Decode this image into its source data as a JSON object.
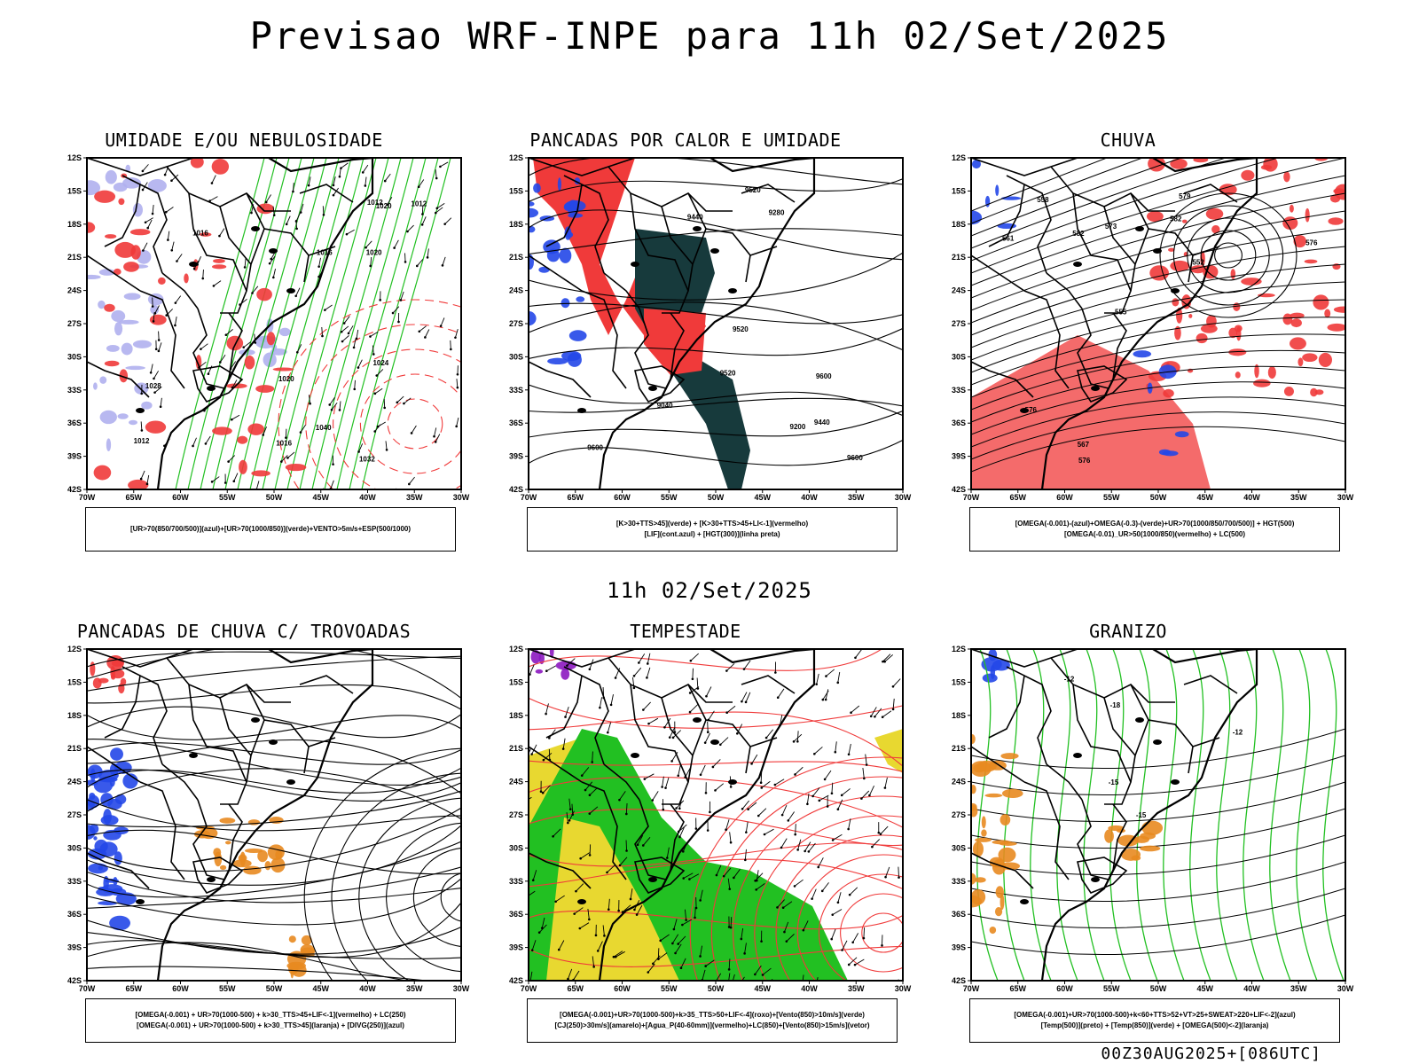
{
  "header": {
    "title": "Previsao WRF-INPE  para 11h 02/Set/2025"
  },
  "mid": {
    "date": "11h 02/Set/2025"
  },
  "footer": {
    "run_id": "00Z30AUG2025+[086UTC]"
  },
  "axes": {
    "lat": [
      "12S",
      "15S",
      "18S",
      "21S",
      "24S",
      "27S",
      "30S",
      "33S",
      "36S",
      "39S",
      "42S"
    ],
    "lon": [
      "70W",
      "65W",
      "60W",
      "55W",
      "50W",
      "45W",
      "40W",
      "35W",
      "30W"
    ]
  },
  "colors": {
    "green": "#22c022",
    "red": "#f03a3a",
    "blue": "#2447e8",
    "lavender": "#b0b0ee",
    "darkteal": "#173a3c",
    "yellow": "#e8d830",
    "orange": "#e88a20",
    "purple": "#8c18c0"
  },
  "panels": [
    {
      "title": "UMIDADE E/OU NEBULOSIDADE",
      "legend": [
        "[UR>70(850/700/500)](azul)+[UR>70(1000/850)](verde)+VENTO>5m/s+ESP(500/1000)"
      ]
    },
    {
      "title": "PANCADAS POR CALOR E UMIDADE",
      "legend": [
        "[K>30+TTS>45](verde) + [K>30+TTS>45+LI<-1](vermelho)",
        "[LIF](cont.azul) + [HGT(300)](linha preta)"
      ]
    },
    {
      "title": "CHUVA",
      "legend": [
        "[OMEGA(-0.001)-(azul)+OMEGA(-0.3)-(verde)+UR>70(1000/850/700/500)] + HGT(500)",
        "[OMEGA(-0.01)_UR>50(1000/850)(vermelho) + LC(500)"
      ]
    },
    {
      "title": "PANCADAS DE CHUVA C/ TROVOADAS",
      "legend": [
        "[OMEGA(-0.001) + UR>70(1000-500) + k>30_TTS>45+LIF<-1](vermelho) + LC(250)",
        "[OMEGA(-0.001) + UR>70(1000-500) + k>30_TTS>45](laranja) + [DIVG(250)](azul)"
      ]
    },
    {
      "title": "TEMPESTADE",
      "legend": [
        "[OMEGA(-0.001)+UR>70(1000-500)+k>35_TTS>50+LIF<-4](roxo)+[Vento(850)>10m/s](verde)",
        "[CJ(250)>30m/s](amarelo)+[Agua_P(40-60mm)](vermelho)+LC(850)+[Vento(850)>15m/s](vetor)"
      ]
    },
    {
      "title": "GRANIZO",
      "legend": [
        "[OMEGA(-0.001)+UR>70(1000-500)+k<60+TTS>52+VT>25+SWEAT>220+LIF<-2](azul)",
        "[Temp(500)](preto) + [Temp(850)](verde) + [OMEGA(500)<-2](laranja)"
      ]
    }
  ],
  "contour_labels": {
    "p1": [
      "1020",
      "1016",
      "1012",
      "1024",
      "1020",
      "1016",
      "1012",
      "1032",
      "1040",
      "1028",
      "1020",
      "1016",
      "1012"
    ],
    "p2": [
      "9600",
      "9600",
      "9520",
      "9520",
      "9440",
      "9520",
      "9440",
      "9280",
      "9200",
      "9040",
      "9600"
    ],
    "p3": [
      "582",
      "579",
      "576",
      "573",
      "567",
      "561",
      "558",
      "555",
      "552",
      "582",
      "576",
      "576"
    ],
    "p6": [
      "-12",
      "-15",
      "-18",
      "-12",
      "-15"
    ]
  }
}
